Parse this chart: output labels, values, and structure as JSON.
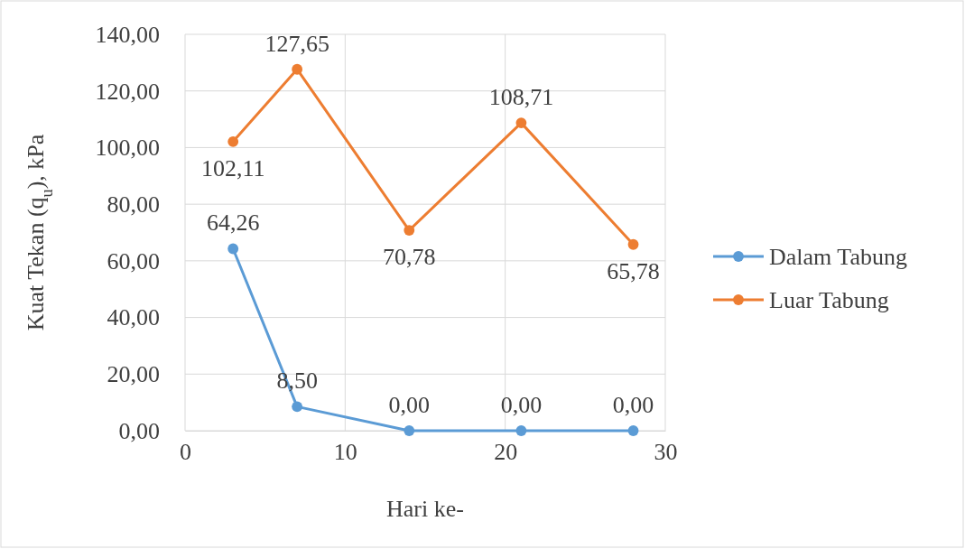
{
  "chart_data": {
    "type": "line",
    "xlabel": "Hari ke-",
    "ylabel": "Kuat Tekan (q$_{u}$), kPa",
    "x": [
      3,
      7,
      14,
      21,
      28
    ],
    "xlim": [
      0,
      30
    ],
    "xticks": [
      0,
      10,
      20,
      30
    ],
    "ylim": [
      0,
      140
    ],
    "yticks": [
      {
        "value": 0,
        "label": "0,00"
      },
      {
        "value": 20,
        "label": "20,00"
      },
      {
        "value": 40,
        "label": "40,00"
      },
      {
        "value": 60,
        "label": "60,00"
      },
      {
        "value": 80,
        "label": "80,00"
      },
      {
        "value": 100,
        "label": "100,00"
      },
      {
        "value": 120,
        "label": "120,00"
      },
      {
        "value": 140,
        "label": "140,00"
      }
    ],
    "grid": true,
    "legend": "right",
    "marker": "circle",
    "line_style": "solid",
    "series": [
      {
        "name": "Dalam Tabung",
        "color": "#5b9bd5",
        "values": [
          64.26,
          8.5,
          0,
          0,
          0
        ],
        "value_labels": [
          "64,26",
          "8,50",
          "0,00",
          "0,00",
          "0,00"
        ]
      },
      {
        "name": "Luar Tabung",
        "color": "#ed7d31",
        "values": [
          102.11,
          127.65,
          70.78,
          108.71,
          65.78
        ],
        "value_labels": [
          "102,11",
          "127,65",
          "70,78",
          "108,71",
          "65,78"
        ]
      }
    ]
  }
}
